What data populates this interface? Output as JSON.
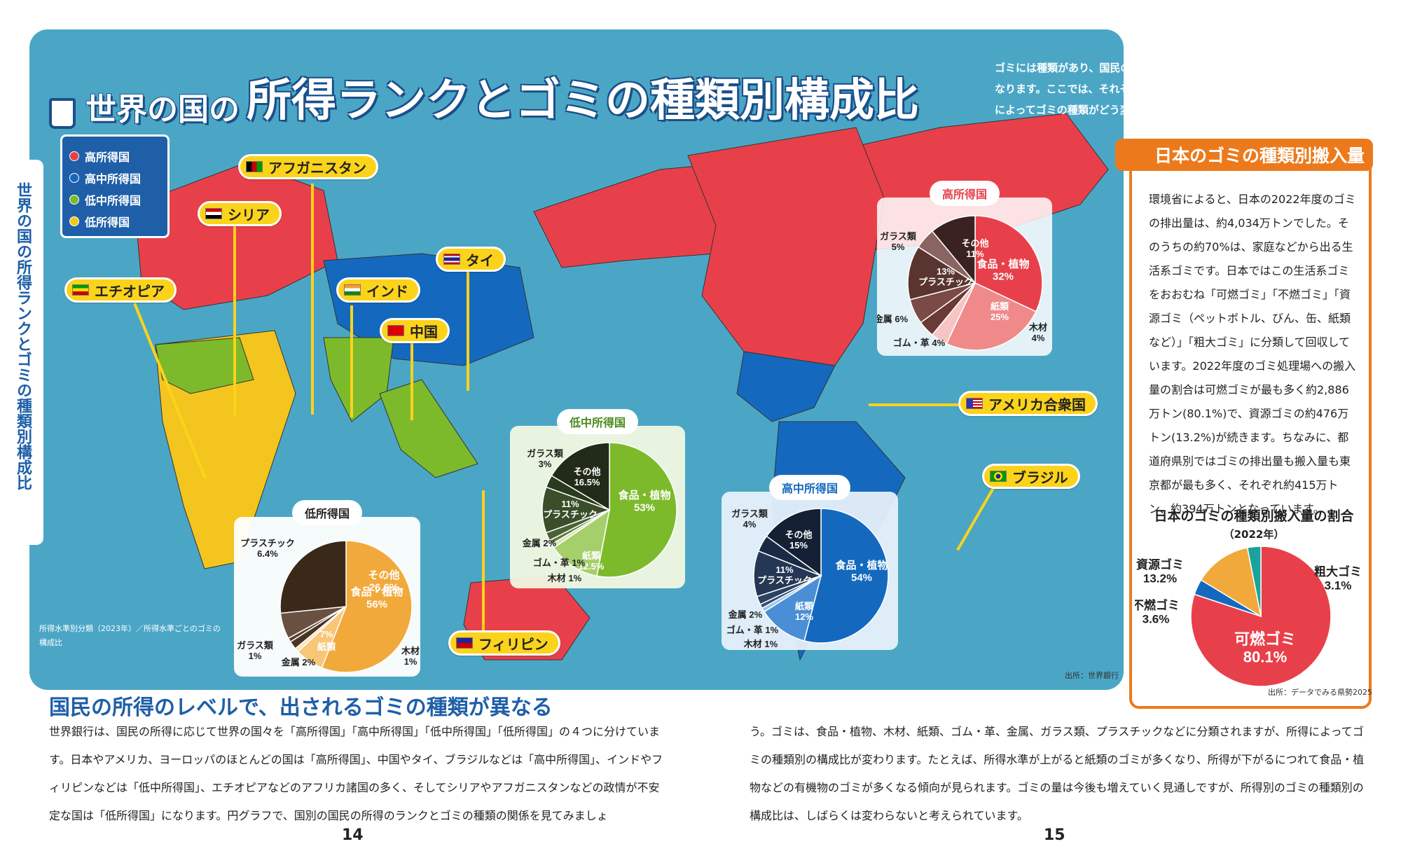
{
  "title": {
    "prefix": "世界の国の",
    "main": "所得ランクとゴミの種類別構成比"
  },
  "intro": "ゴミには種類があり、国民の所得ランクによって、出されるゴミの種類が異なります。ここでは、それぞれの国の所得がどの程度なのか、そして、所得によってゴミの種類がどう変わるのかを見てみましょう。",
  "side_title": "世界の国の所得ランクとゴミの種類別構成比",
  "legend": [
    {
      "label": "高所得国",
      "color": "#e8404a"
    },
    {
      "label": "高中所得国",
      "color": "#1469bf"
    },
    {
      "label": "低中所得国",
      "color": "#7dba2b"
    },
    {
      "label": "低所得国",
      "color": "#f4c51e"
    }
  ],
  "countries": {
    "afghanistan": "アフガニスタン",
    "syria": "シリア",
    "thailand": "タイ",
    "ethiopia": "エチオピア",
    "india": "インド",
    "china": "中国",
    "usa": "アメリカ合衆国",
    "brazil": "ブラジル",
    "philippines": "フィリピン"
  },
  "map_note": "所得水準別分類（2023年）／所得水準ごとのゴミの構成比",
  "source_worldbank": "出所：世界銀行",
  "chart_data": [
    {
      "type": "pie",
      "title": "高所得国",
      "categories": [
        "食品・植物",
        "紙類",
        "木材",
        "ゴム・革",
        "金属",
        "プラスチック",
        "ガラス類",
        "その他"
      ],
      "values": [
        32,
        25,
        4,
        4,
        6,
        13,
        5,
        11
      ]
    },
    {
      "type": "pie",
      "title": "低中所得国",
      "categories": [
        "食品・植物",
        "紙類",
        "木材",
        "ゴム・革",
        "金属",
        "プラスチック",
        "ガラス類",
        "その他"
      ],
      "values": [
        53,
        12.5,
        1,
        1,
        2,
        11,
        3,
        16.5
      ]
    },
    {
      "type": "pie",
      "title": "高中所得国",
      "categories": [
        "食品・植物",
        "紙類",
        "木材",
        "ゴム・革",
        "金属",
        "プラスチック",
        "ガラス類",
        "その他"
      ],
      "values": [
        54,
        12,
        1,
        1,
        2,
        11,
        4,
        15
      ]
    },
    {
      "type": "pie",
      "title": "低所得国",
      "categories": [
        "食品・植物",
        "紙類",
        "木材",
        "金属",
        "ガラス類",
        "プラスチック",
        "その他"
      ],
      "values": [
        56,
        7,
        1,
        2,
        1,
        6.4,
        26.6
      ]
    },
    {
      "type": "pie",
      "title": "日本のゴミの種類別搬入量の割合",
      "subtitle": "（2022年）",
      "categories": [
        "可燃ゴミ",
        "不燃ゴミ",
        "資源ゴミ",
        "粗大ゴミ"
      ],
      "values": [
        80.1,
        3.6,
        13.2,
        3.1
      ]
    }
  ],
  "pie_labels": {
    "high": [
      "その他\n11%",
      "食品・植物\n32%",
      "紙類\n25%",
      "木材\n4%",
      "ゴム・革 4%",
      "金属 6%",
      "13%\nプラスチック",
      "ガラス類\n5%"
    ],
    "lowmid": [
      "その他\n16.5%",
      "食品・植物\n53%",
      "紙類\n12.5%",
      "木材 1%",
      "ゴム・革 1%",
      "金属 2%",
      "11%\nプラスチック",
      "ガラス類\n3%"
    ],
    "upmid": [
      "その他\n15%",
      "食品・植物\n54%",
      "紙類\n12%",
      "木材 1%",
      "ゴム・革 1%",
      "金属 2%",
      "11%\nプラスチック",
      "ガラス類\n4%"
    ],
    "low": [
      "その他\n26.6%",
      "食品・植物\n56%",
      "紙類",
      "7%",
      "木材\n1%",
      "金属 2%",
      "ガラス類\n1%",
      "プラスチック\n6.4%"
    ],
    "japan": [
      "可燃ゴミ\n80.1%",
      "不燃ゴミ\n3.6%",
      "資源ゴミ\n13.2%",
      "粗大ゴミ\n3.1%"
    ]
  },
  "japan": {
    "heading": "日本のゴミの種類別搬入量",
    "text": "環境省によると、日本の2022年度のゴミの排出量は、約4,034万トンでした。そのうちの約70%は、家庭などから出る生活系ゴミです。日本ではこの生活系ゴミをおおむね「可燃ゴミ」「不燃ゴミ」「資源ゴミ（ペットボトル、びん、缶、紙類など）」「粗大ゴミ」に分類して回収しています。2022年度のゴミ処理場への搬入量の割合は可燃ゴミが最も多く約2,886万トン(80.1%)で、資源ゴミの約476万トン(13.2%)が続きます。ちなみに、都道府県別ではゴミの排出量も搬入量も東京都が最も多く、それぞれ約415万トン、約394万トンとなっています。",
    "chart_title": "日本のゴミの種類別搬入量の割合",
    "chart_sub": "（2022年）",
    "source": "出所：データでみる県勢2025"
  },
  "section_heading": "国民の所得のレベルで、出されるゴミの種類が異なる",
  "body_left": "世界銀行は、国民の所得に応じて世界の国々を「高所得国」「高中所得国」「低中所得国」「低所得国」の４つに分けています。日本やアメリカ、ヨーロッパのほとんどの国は「高所得国」、中国やタイ、ブラジルなどは「高中所得国」、インドやフィリピンなどは「低中所得国」、エチオピアなどのアフリカ諸国の多く、そしてシリアやアフガニスタンなどの政情が不安定な国は「低所得国」になります。円グラフで、国別の国民の所得のランクとゴミの種類の関係を見てみましょ",
  "body_right": "う。ゴミは、食品・植物、木材、紙類、ゴム・革、金属、ガラス類、プラスチックなどに分類されますが、所得によってゴミの種類別の構成比が変わります。たとえば、所得水準が上がると紙類のゴミが多くなり、所得が下がるにつれて食品・植物などの有機物のゴミが多くなる傾向が見られます。ゴミの量は今後も増えていく見通しですが、所得別のゴミの種類別の構成比は、しばらくは変わらないと考えられています。",
  "page_left": "14",
  "page_right": "15"
}
